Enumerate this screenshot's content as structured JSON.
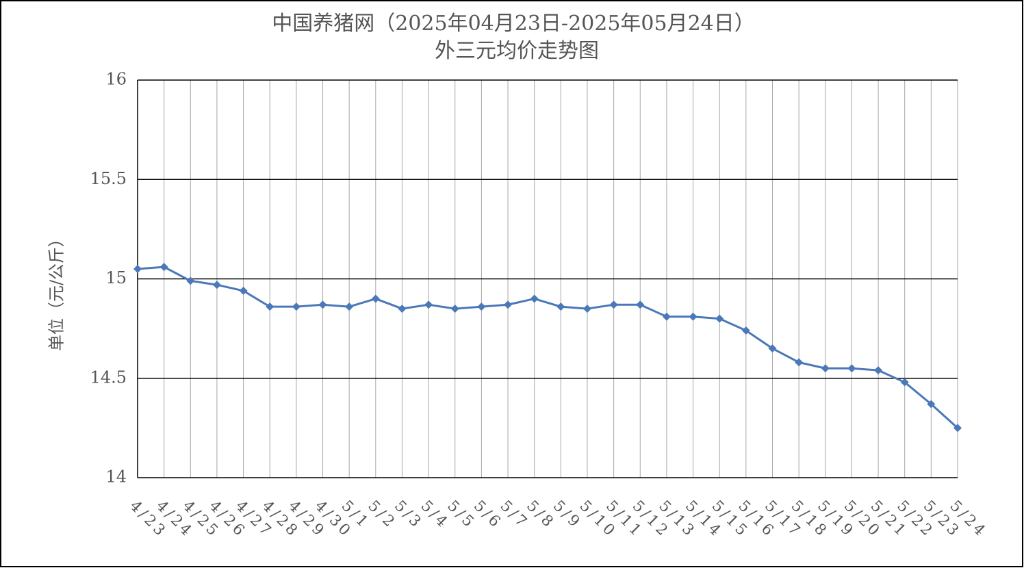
{
  "chart_data": {
    "type": "line",
    "title": "中国养猪网（2025年04月23日-2025年05月24日）",
    "subtitle": "外三元均价走势图",
    "y_label": "单位（元/公斤）",
    "categories": [
      "4/23",
      "4/24",
      "4/25",
      "4/26",
      "4/27",
      "4/28",
      "4/29",
      "4/30",
      "5/1",
      "5/2",
      "5/3",
      "5/4",
      "5/5",
      "5/6",
      "5/7",
      "5/8",
      "5/9",
      "5/10",
      "5/11",
      "5/12",
      "5/13",
      "5/14",
      "5/15",
      "5/16",
      "5/17",
      "5/18",
      "5/19",
      "5/20",
      "5/21",
      "5/22",
      "5/23",
      "5/24"
    ],
    "values": [
      15.05,
      15.06,
      14.99,
      14.97,
      14.94,
      14.86,
      14.86,
      14.87,
      14.86,
      14.9,
      14.85,
      14.87,
      14.85,
      14.86,
      14.87,
      14.9,
      14.86,
      14.85,
      14.87,
      14.87,
      14.81,
      14.81,
      14.8,
      14.74,
      14.65,
      14.58,
      14.55,
      14.55,
      14.54,
      14.48,
      14.37,
      14.25
    ],
    "color": "#4a78b8",
    "ylim": [
      14,
      16
    ],
    "yticks": [
      14,
      14.5,
      15,
      15.5,
      16
    ],
    "grid": true
  }
}
